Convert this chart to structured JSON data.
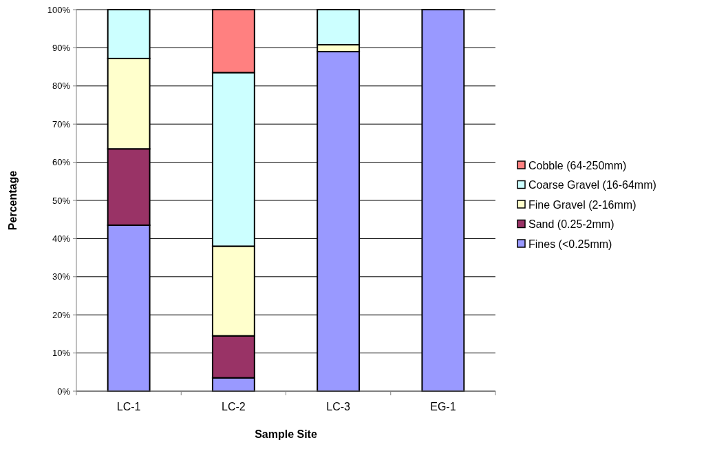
{
  "chart_data": {
    "type": "bar",
    "stacked": true,
    "xlabel": "Sample Site",
    "ylabel": "Percentage",
    "categories": [
      "LC-1",
      "LC-2",
      "LC-3",
      "EG-1"
    ],
    "series": [
      {
        "name": "Fines (<0.25mm)",
        "color": "#9999ff",
        "values": [
          43.5,
          3.5,
          89,
          100
        ]
      },
      {
        "name": "Sand (0.25-2mm)",
        "color": "#993366",
        "values": [
          20,
          11,
          0,
          0
        ]
      },
      {
        "name": "Fine Gravel (2-16mm)",
        "color": "#ffffcc",
        "values": [
          23.7,
          23.5,
          1.8,
          0
        ]
      },
      {
        "name": "Coarse Gravel (16-64mm)",
        "color": "#ccffff",
        "values": [
          12.8,
          45.5,
          9.2,
          0
        ]
      },
      {
        "name": "Cobble (64-250mm)",
        "color": "#ff8080",
        "values": [
          0,
          16.5,
          0,
          0
        ]
      }
    ],
    "ylim": [
      0,
      100
    ],
    "yticks": [
      {
        "value": 0,
        "label": "0%"
      },
      {
        "value": 10,
        "label": "10%"
      },
      {
        "value": 20,
        "label": "20%"
      },
      {
        "value": 30,
        "label": "30%"
      },
      {
        "value": 40,
        "label": "40%"
      },
      {
        "value": 50,
        "label": "50%"
      },
      {
        "value": 60,
        "label": "60%"
      },
      {
        "value": 70,
        "label": "70%"
      },
      {
        "value": 80,
        "label": "80%"
      },
      {
        "value": 90,
        "label": "90%"
      },
      {
        "value": 100,
        "label": "100%"
      }
    ],
    "grid": "y",
    "legend": "right"
  }
}
